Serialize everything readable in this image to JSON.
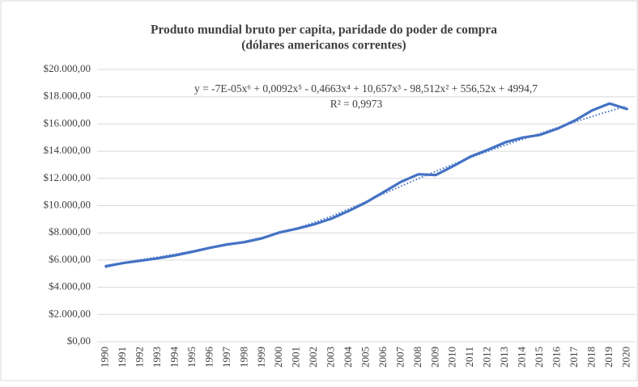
{
  "chart_data": {
    "type": "line",
    "title": [
      "Produto mundial bruto per capita, paridade do poder de compra",
      "(dólares americanos correntes)"
    ],
    "annotations": [
      "y = -7E-05x⁶ + 0,0092x⁵ - 0,4663x⁴ + 10,657x³ - 98,512x² + 556,52x + 4994,7",
      "R² = 0,9973"
    ],
    "categories": [
      "1990",
      "1991",
      "1992",
      "1993",
      "1994",
      "1995",
      "1996",
      "1997",
      "1998",
      "1999",
      "2000",
      "2001",
      "2002",
      "2003",
      "2004",
      "2005",
      "2006",
      "2007",
      "2008",
      "2009",
      "2010",
      "2011",
      "2012",
      "2013",
      "2014",
      "2015",
      "2016",
      "2017",
      "2018",
      "2019",
      "2020"
    ],
    "series": [
      {
        "color": "#4472c4",
        "values": [
          5550,
          5780,
          5950,
          6130,
          6350,
          6620,
          6900,
          7150,
          7320,
          7600,
          8030,
          8300,
          8630,
          9050,
          9620,
          10250,
          11000,
          11750,
          12300,
          12250,
          12900,
          13600,
          14100,
          14650,
          15000,
          15200,
          15650,
          16250,
          17000,
          17500,
          17100
        ]
      }
    ],
    "trendline": {
      "color": "#4472c4",
      "values": [
        5460,
        5800,
        6030,
        6220,
        6430,
        6660,
        6900,
        7130,
        7380,
        7660,
        7970,
        8340,
        8760,
        9230,
        9750,
        10300,
        10870,
        11430,
        11990,
        12520,
        13040,
        13530,
        14000,
        14450,
        14880,
        15300,
        15720,
        16140,
        16550,
        16950,
        17300
      ]
    },
    "ylim": [
      0,
      20000
    ],
    "yticks": [
      {
        "value": 0,
        "label": "$0,00"
      },
      {
        "value": 2000,
        "label": "$2.000,00"
      },
      {
        "value": 4000,
        "label": "$4.000,00"
      },
      {
        "value": 6000,
        "label": "$6.000,00"
      },
      {
        "value": 8000,
        "label": "$8.000,00"
      },
      {
        "value": 10000,
        "label": "$10.000,00"
      },
      {
        "value": 12000,
        "label": "$12.000,00"
      },
      {
        "value": 14000,
        "label": "$14.000,00"
      },
      {
        "value": 16000,
        "label": "$16.000,00"
      },
      {
        "value": 18000,
        "label": "$18.000,00"
      },
      {
        "value": 20000,
        "label": "$20.000,00"
      }
    ],
    "grid": true
  }
}
